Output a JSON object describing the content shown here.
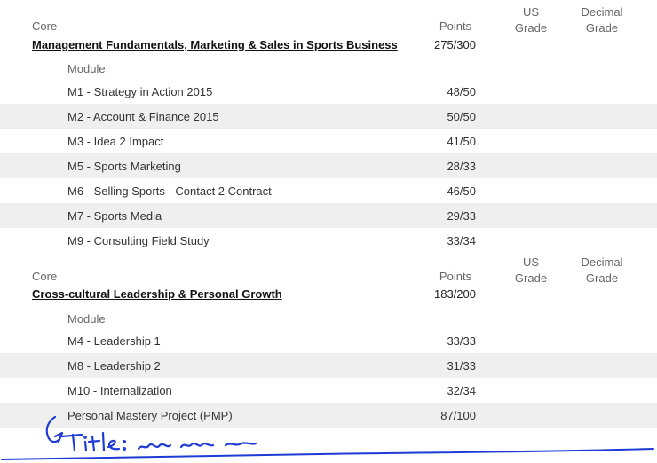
{
  "sections": [
    {
      "core_label": "Core",
      "title": "Management Fundamentals, Marketing & Sales in Sports Business",
      "points_header": "Points",
      "us_grade_header": [
        "US",
        "Grade"
      ],
      "decimal_grade_header": [
        "Decimal",
        "Grade"
      ],
      "total": "275/300",
      "module_header": "Module",
      "modules": [
        {
          "name": "M1 - Strategy in Action 2015",
          "points": "48/50"
        },
        {
          "name": "M2 - Account & Finance 2015",
          "points": "50/50"
        },
        {
          "name": "M3 - Idea 2 Impact",
          "points": "41/50"
        },
        {
          "name": "M5 - Sports Marketing",
          "points": "28/33"
        },
        {
          "name": "M6 - Selling Sports - Contact 2 Contract",
          "points": "46/50"
        },
        {
          "name": "M7 - Sports Media",
          "points": "29/33"
        },
        {
          "name": "M9 - Consulting Field Study",
          "points": "33/34"
        }
      ]
    },
    {
      "core_label": "Core",
      "title": "Cross-cultural Leadership & Personal Growth",
      "points_header": "Points",
      "us_grade_header": [
        "US",
        "Grade"
      ],
      "decimal_grade_header": [
        "Decimal",
        "Grade"
      ],
      "total": "183/200",
      "module_header": "Module",
      "modules": [
        {
          "name": "M4 - Leadership 1",
          "points": "33/33"
        },
        {
          "name": "M8 - Leadership 2",
          "points": "31/33"
        },
        {
          "name": "M10 - Internalization",
          "points": "32/34"
        },
        {
          "name": "Personal Mastery Project (PMP)",
          "points": "87/100"
        }
      ]
    }
  ],
  "handwriting": {
    "ink_color": "#1f3bd6",
    "annotation_icon": "handwritten-title-scribble"
  }
}
